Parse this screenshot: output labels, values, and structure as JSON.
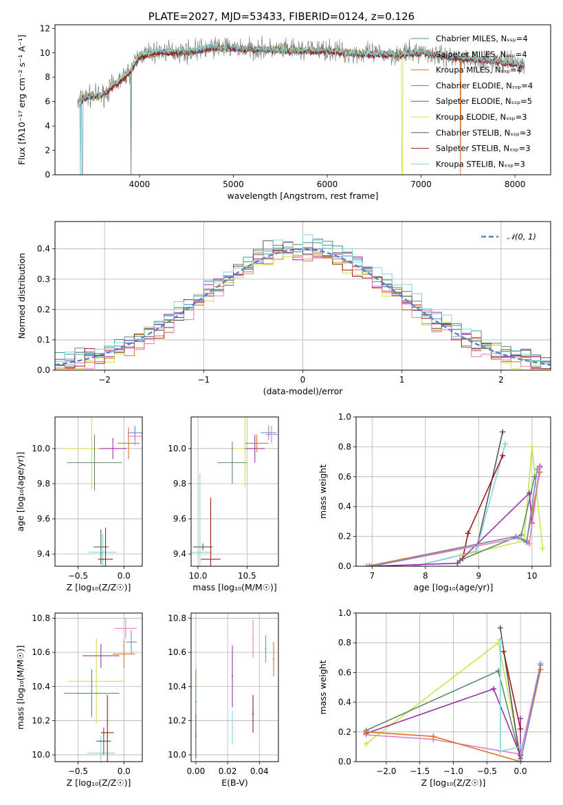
{
  "chart_data": [
    {
      "type": "line",
      "panel": "spectrum",
      "title": "PLATE=2027, MJD=53433, FIBERID=0124, z=0.126",
      "xlabel": "wavelength [Angstrom, rest frame]",
      "ylabel": "Flux [fλ10⁻¹⁷ erg cm⁻² s⁻¹ A⁻¹]",
      "xlim": [
        3100,
        8380
      ],
      "ylim": [
        0,
        12.3
      ],
      "xticks": [
        4000,
        5000,
        6000,
        7000,
        8000
      ],
      "yticks": [
        0,
        2,
        4,
        6,
        8,
        10,
        12
      ],
      "grid": false,
      "legend_position": "upper-right",
      "series": [
        {
          "name": "Chabrier MILES, N_SSP=4",
          "color": "#3a9a96",
          "x": [
            3340,
            3400,
            3600,
            3800,
            3900,
            4000,
            4200,
            4500,
            4800,
            5000,
            5300,
            5600,
            6000,
            6400,
            6800,
            7000,
            7300,
            7600,
            8000,
            8100
          ],
          "y": [
            5.8,
            6.4,
            6.5,
            7.8,
            8.5,
            9.8,
            10.1,
            10.1,
            10.5,
            10.4,
            10.3,
            10.2,
            10.2,
            9.9,
            9.9,
            10.1,
            9.6,
            9.5,
            9.1,
            9.0
          ]
        },
        {
          "name": "Salpeter MILES, N_SSP=4",
          "color": "#8aa0b4",
          "x": [
            3340,
            3400,
            3600,
            3800,
            3900,
            4000,
            4200,
            4500,
            4800,
            5000,
            5300,
            5600,
            6000,
            6400,
            6800,
            7000,
            7300,
            7600,
            8000,
            8100
          ],
          "y": [
            5.8,
            6.3,
            6.5,
            7.8,
            8.4,
            9.7,
            10.0,
            10.0,
            10.4,
            10.3,
            10.3,
            10.2,
            10.2,
            9.9,
            9.9,
            10.0,
            9.6,
            9.5,
            9.1,
            9.0
          ]
        },
        {
          "name": "Kroupa MILES, N_SSP=4",
          "color": "#e07020",
          "x": [
            3340,
            3400,
            3600,
            3800,
            3900,
            4000,
            4200,
            4500,
            4800,
            5000,
            5300,
            5600,
            6000,
            6400,
            6800,
            7000,
            7300,
            7600,
            8000,
            8100
          ],
          "y": [
            5.9,
            6.4,
            6.6,
            7.9,
            8.5,
            9.8,
            10.1,
            10.1,
            10.4,
            10.4,
            10.3,
            10.2,
            10.2,
            9.9,
            9.9,
            10.1,
            9.7,
            9.5,
            9.1,
            9.0
          ]
        },
        {
          "name": "Chabrier ELODIE, N_SSP=4",
          "color": "#5d8a68",
          "x": [
            3400,
            3600,
            3800,
            3900,
            4000,
            4200,
            4500,
            4800,
            5000,
            5300,
            5600,
            6000,
            6400,
            6800,
            7000
          ],
          "y": [
            6.2,
            6.5,
            7.7,
            8.5,
            9.7,
            10.0,
            10.0,
            10.4,
            10.3,
            10.3,
            10.2,
            10.2,
            9.9,
            9.9,
            10.0
          ]
        },
        {
          "name": "Salpeter ELODIE, N_SSP=5",
          "color": "#9c2fae",
          "x": [
            3400,
            3600,
            3800,
            3900,
            4000,
            4200,
            4500,
            4800,
            5000,
            5300,
            5600,
            6000,
            6400,
            6800,
            7000
          ],
          "y": [
            6.2,
            6.5,
            7.7,
            8.5,
            9.7,
            10.0,
            10.0,
            10.4,
            10.3,
            10.3,
            10.2,
            10.2,
            9.9,
            9.9,
            10.0
          ]
        },
        {
          "name": "Kroupa ELODIE, N_SSP=3",
          "color": "#c9e64a",
          "x": [
            3400,
            3600,
            3800,
            3900,
            4000,
            4200,
            4500,
            4800,
            5000,
            5300,
            5600,
            6000,
            6400,
            6800,
            7000
          ],
          "y": [
            6.2,
            6.5,
            7.8,
            8.5,
            9.8,
            10.0,
            10.1,
            10.4,
            10.3,
            10.3,
            10.2,
            10.2,
            9.9,
            9.9,
            10.0
          ]
        },
        {
          "name": "Chabrier STELIB, N_SSP=3",
          "color": "#555555",
          "x": [
            3360,
            3400,
            3600,
            3800,
            3900,
            4000,
            4200,
            4500,
            4800,
            5000,
            5300,
            5600,
            6000,
            6400,
            6800,
            7000,
            7300,
            7600,
            8000,
            8100
          ],
          "y": [
            5.5,
            6.3,
            6.5,
            7.6,
            8.4,
            9.6,
            10.0,
            10.0,
            10.4,
            10.3,
            10.2,
            10.1,
            10.1,
            9.8,
            9.8,
            10.0,
            9.6,
            9.4,
            9.0,
            8.9
          ]
        },
        {
          "name": "Salpeter STELIB, N_SSP=3",
          "color": "#9b1a1a",
          "x": [
            3360,
            3400,
            3600,
            3800,
            3900,
            4000,
            4200,
            4500,
            4800,
            5000,
            5300,
            5600,
            6000,
            6400,
            6800,
            7000,
            7300,
            7600,
            8000,
            8100
          ],
          "y": [
            5.5,
            6.3,
            6.5,
            7.6,
            8.4,
            9.6,
            10.0,
            10.0,
            10.4,
            10.3,
            10.2,
            10.1,
            10.1,
            9.8,
            9.8,
            10.0,
            9.6,
            9.4,
            9.0,
            8.9
          ]
        },
        {
          "name": "Kroupa STELIB, N_SSP=3",
          "color": "#7ed6e0",
          "x": [
            3340,
            3400,
            3600,
            3800,
            3900,
            4000,
            4200,
            4500,
            4800,
            5000,
            5300,
            5600,
            6000,
            6400,
            6800,
            7000,
            7300,
            7600,
            8000,
            8100
          ],
          "y": [
            5.6,
            6.4,
            6.6,
            7.9,
            8.5,
            9.9,
            10.2,
            10.2,
            10.5,
            10.4,
            10.3,
            10.2,
            10.2,
            9.9,
            9.9,
            10.1,
            9.7,
            9.5,
            9.1,
            9.0
          ]
        }
      ]
    },
    {
      "type": "line",
      "panel": "residuals",
      "xlabel": "(data-model)/error",
      "ylabel": "Normed distribution",
      "xlim": [
        -2.5,
        2.5
      ],
      "ylim": [
        0,
        0.49
      ],
      "xticks": [
        -2,
        -1,
        0,
        1,
        2
      ],
      "yticks": [
        0.0,
        0.1,
        0.2,
        0.3,
        0.4
      ],
      "grid": true,
      "legend_position": "upper-right",
      "legend": "𝒩(0, 1)",
      "gaussian": {
        "mean": 0,
        "sigma": 1,
        "color": "#4a86d6"
      },
      "bin_edges": [
        -2.5,
        -2.4,
        -2.3,
        -2.2,
        -2.1,
        -2.0,
        -1.9,
        -1.8,
        -1.7,
        -1.6,
        -1.5,
        -1.4,
        -1.3,
        -1.2,
        -1.1,
        -1.0,
        -0.9,
        -0.8,
        -0.7,
        -0.6,
        -0.5,
        -0.4,
        -0.3,
        -0.2,
        -0.1,
        0.0,
        0.1,
        0.2,
        0.3,
        0.4,
        0.5,
        0.6,
        0.7,
        0.8,
        0.9,
        1.0,
        1.1,
        1.2,
        1.3,
        1.4,
        1.5,
        1.6,
        1.7,
        1.8,
        1.9,
        2.0,
        2.1,
        2.2,
        2.3,
        2.4,
        2.5
      ],
      "hist_colors": [
        "#3a9a96",
        "#e07020",
        "#5d8a68",
        "#9c2fae",
        "#c9e64a",
        "#555555",
        "#9b1a1a",
        "#7ed6e0",
        "#e080c0"
      ],
      "hist_deltas": [
        0.02,
        -0.015,
        0.025,
        0.01,
        -0.02,
        0.015,
        -0.01,
        0.03,
        -0.025
      ]
    },
    {
      "type": "scatter",
      "panel": "Z-age",
      "xlabel": "Z [log₁₀(Z/Z☉)]",
      "ylabel": "age  [log₁₀(age/yr)]",
      "xlim": [
        -0.75,
        0.2
      ],
      "ylim": [
        9.33,
        10.18
      ],
      "xticks": [
        -0.5,
        0.0
      ],
      "yticks": [
        9.4,
        9.6,
        9.8,
        10.0
      ],
      "grid": true
    },
    {
      "type": "scatter",
      "panel": "mass-age",
      "xlabel": "mass [log₁₀(M/M☉)]",
      "ylabel": "",
      "xlim": [
        9.93,
        10.82
      ],
      "ylim": [
        9.33,
        10.18
      ],
      "xticks": [
        10.0,
        10.5
      ],
      "yticks": [
        9.4,
        9.6,
        9.8,
        10.0
      ],
      "grid": true
    },
    {
      "type": "line",
      "panel": "age-weight",
      "xlabel": "age  [log₁₀(age/yr)]",
      "ylabel": "mass weight",
      "xlim": [
        6.7,
        10.35
      ],
      "ylim": [
        0,
        1
      ],
      "xticks": [
        7,
        8,
        9,
        10
      ],
      "yticks": [
        0.0,
        0.2,
        0.4,
        0.6,
        0.8,
        1.0
      ],
      "grid": true,
      "series": [
        {
          "color": "#555555",
          "x": [
            7.8,
            8.95,
            9.45
          ],
          "y": [
            0.0,
            0.1,
            0.9
          ]
        },
        {
          "color": "#7ed6e0",
          "x": [
            7.8,
            8.95,
            9.5
          ],
          "y": [
            0.0,
            0.1,
            0.82
          ]
        },
        {
          "color": "#9b1a1a",
          "x": [
            8.7,
            8.8,
            9.45
          ],
          "y": [
            0.05,
            0.22,
            0.74
          ]
        },
        {
          "color": "#c9e64a",
          "x": [
            8.65,
            9.85,
            10.0,
            10.2
          ],
          "y": [
            0.07,
            0.17,
            0.8,
            0.12
          ]
        },
        {
          "color": "#5d8a68",
          "x": [
            8.65,
            9.8,
            10.05
          ],
          "y": [
            0.04,
            0.21,
            0.6
          ]
        },
        {
          "color": "#9c2fae",
          "x": [
            6.95,
            8.6,
            9.95,
            10.0,
            10.15
          ],
          "y": [
            0.0,
            0.02,
            0.49,
            0.29,
            0.67
          ]
        },
        {
          "color": "#e07020",
          "x": [
            6.9,
            9.7,
            9.9,
            10.15
          ],
          "y": [
            0.0,
            0.2,
            0.17,
            0.63
          ]
        },
        {
          "color": "#e080c0",
          "x": [
            7.0,
            9.75,
            9.95,
            10.15
          ],
          "y": [
            0.0,
            0.19,
            0.15,
            0.66
          ]
        },
        {
          "color": "#6b8fd0",
          "x": [
            7.0,
            9.7,
            9.9,
            10.1
          ],
          "y": [
            0.0,
            0.2,
            0.16,
            0.65
          ]
        }
      ]
    },
    {
      "type": "scatter",
      "panel": "Z-mass",
      "xlabel": "Z [log₁₀(Z/Z☉)]",
      "ylabel": "mass [log₁₀(M/M☉)]",
      "xlim": [
        -0.75,
        0.2
      ],
      "ylim": [
        9.96,
        10.83
      ],
      "xticks": [
        -0.5,
        0.0
      ],
      "yticks": [
        10.0,
        10.2,
        10.4,
        10.6,
        10.8
      ],
      "grid": true
    },
    {
      "type": "scatter",
      "panel": "EBV-mass",
      "xlabel": "E(B-V)",
      "ylabel": "",
      "xlim": [
        -0.003,
        0.052
      ],
      "ylim": [
        9.96,
        10.83
      ],
      "xticks": [
        0.0,
        0.02,
        0.04
      ],
      "xtick_labels": [
        "0.00",
        "0.02",
        "0.04"
      ],
      "yticks": [
        10.0,
        10.2,
        10.4,
        10.6,
        10.8
      ],
      "grid": true
    },
    {
      "type": "line",
      "panel": "Z-weight",
      "xlabel": "Z [log₁₀(Z/Z☉)]",
      "ylabel": "mass weight",
      "xlim": [
        -2.45,
        0.45
      ],
      "ylim": [
        0,
        1
      ],
      "xticks": [
        -2.0,
        -1.5,
        -1.0,
        -0.5,
        0.0
      ],
      "yticks": [
        0.0,
        0.2,
        0.4,
        0.6,
        0.8,
        1.0
      ],
      "grid": true,
      "series": [
        {
          "color": "#c9e64a",
          "x": [
            -2.3,
            -0.33,
            0.0
          ],
          "y": [
            0.12,
            0.8,
            0.05
          ]
        },
        {
          "color": "#5d8a68",
          "x": [
            -2.3,
            -0.33,
            0.0
          ],
          "y": [
            0.21,
            0.61,
            0.02
          ]
        },
        {
          "color": "#9c2fae",
          "x": [
            -2.3,
            -0.4,
            0.0,
            0.0
          ],
          "y": [
            0.19,
            0.49,
            0.04,
            0.29
          ]
        },
        {
          "color": "#e080c0",
          "x": [
            -2.3,
            -1.3,
            0.0,
            0.3
          ],
          "y": [
            0.18,
            0.15,
            0.05,
            0.66
          ]
        },
        {
          "color": "#e07020",
          "x": [
            -2.3,
            -1.3,
            0.0,
            0.3
          ],
          "y": [
            0.2,
            0.17,
            0.0,
            0.62
          ]
        },
        {
          "color": "#555555",
          "x": [
            -0.3,
            0.0
          ],
          "y": [
            0.9,
            0.0
          ]
        },
        {
          "color": "#7ed6e0",
          "x": [
            -0.3,
            -0.3,
            0.0
          ],
          "y": [
            0.82,
            0.07,
            0.1
          ]
        },
        {
          "color": "#9b1a1a",
          "x": [
            -0.25,
            0.0
          ],
          "y": [
            0.74,
            0.22
          ]
        },
        {
          "color": "#6b8fd0",
          "x": [
            0.0,
            0.3
          ],
          "y": [
            0.0,
            0.65
          ]
        }
      ]
    }
  ]
}
